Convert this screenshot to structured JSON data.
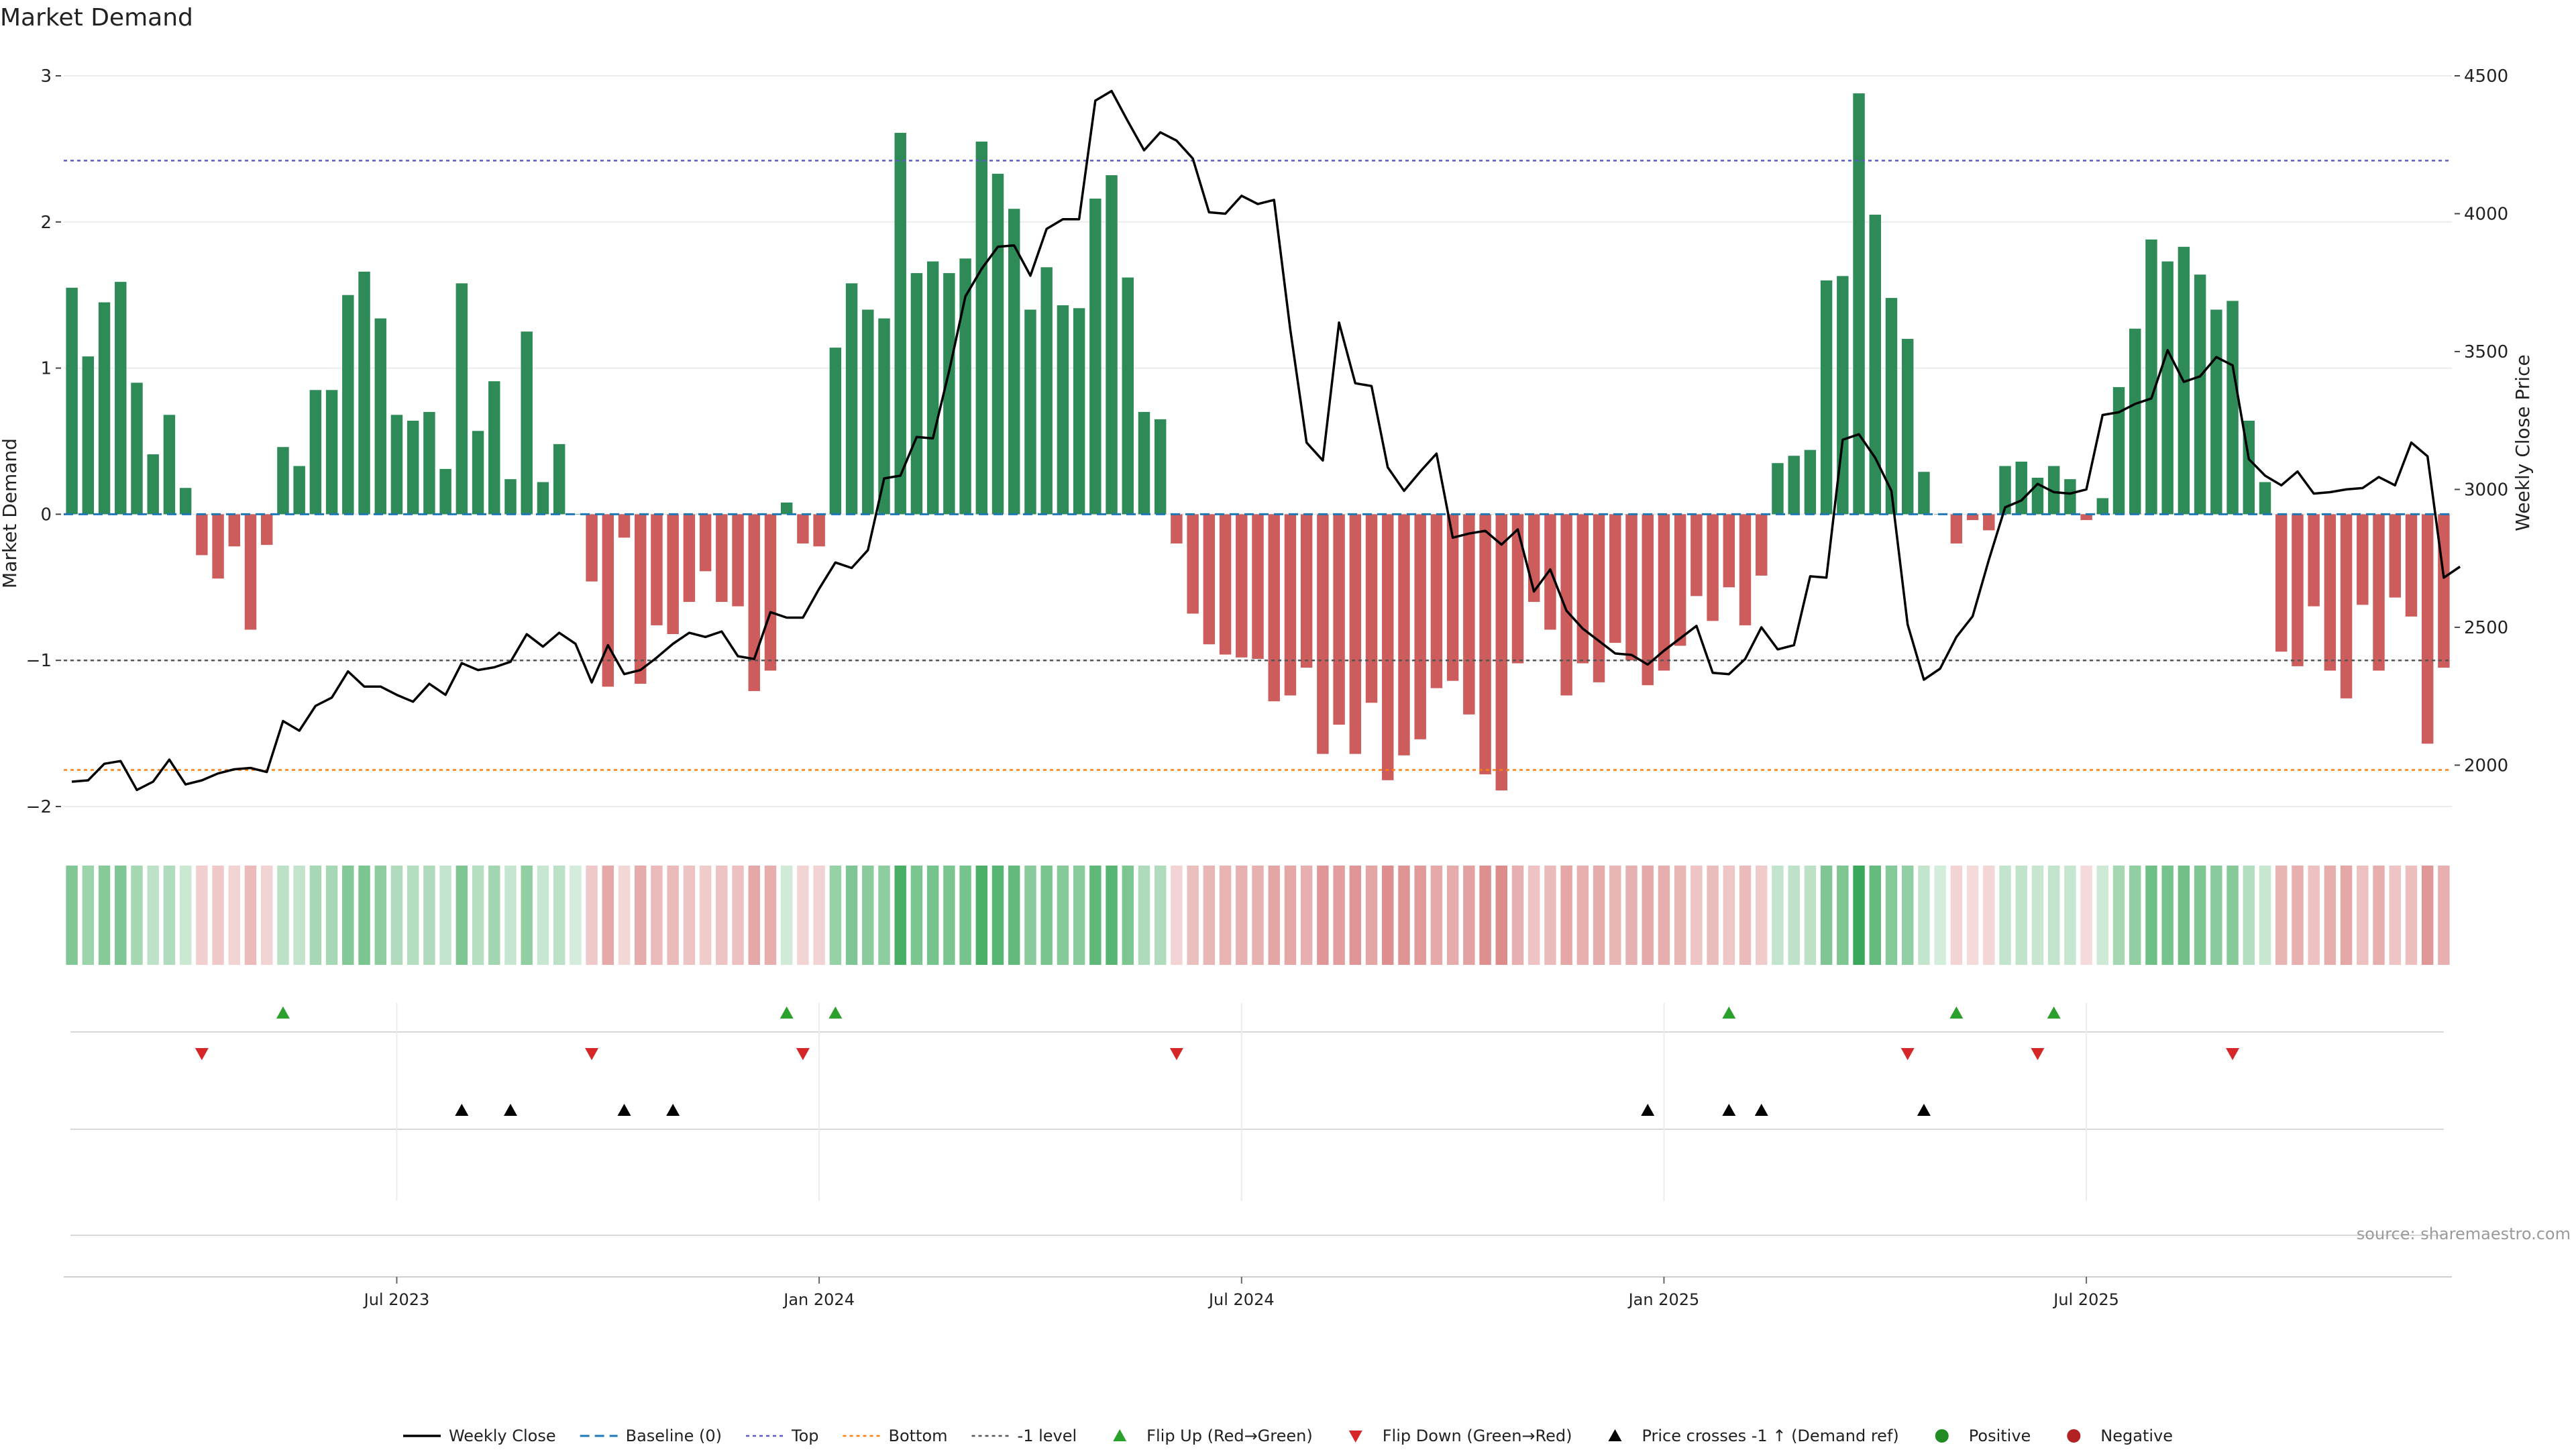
{
  "chart_data": {
    "type": "bar",
    "title": "Market Demand",
    "ylabel": "Market Demand",
    "y2label": "Weekly Close Price",
    "ylim": [
      -2.0,
      3.0
    ],
    "y2lim": [
      1850,
      4500
    ],
    "yticks": [
      -2,
      -1,
      0,
      1,
      2,
      3
    ],
    "yticklabels": [
      "−2",
      "−1",
      "0",
      "1",
      "2",
      "3"
    ],
    "y2ticks": [
      2000,
      2500,
      3000,
      3500,
      4000,
      4500
    ],
    "y2ticklabels": [
      "2000",
      "2500",
      "3000",
      "3500",
      "4000",
      "4500"
    ],
    "xticks": [
      20,
      46,
      72,
      98,
      124
    ],
    "xticklabels": [
      "Jul 2023",
      "Jan 2024",
      "Jul 2024",
      "Jan 2025",
      "Jul 2025"
    ],
    "reference_lines": {
      "top": 2.42,
      "bottom": -1.75,
      "minus_one": -1.0,
      "baseline": 0
    },
    "source_text": "source: sharemaestro.com",
    "colors": {
      "positive": "#2e8b57",
      "negative": "#cd5c5c",
      "price": "#000000",
      "baseline": "#1f77b4",
      "top": "#5b5bc8",
      "bottom": "#ff7f0e",
      "minus_one": "#555555",
      "flip_up": "#2ca02c",
      "flip_down": "#d62728",
      "cross": "#000000",
      "legend_positive": "#228b22",
      "legend_negative": "#b22222"
    },
    "series": [
      {
        "name": "Market Demand",
        "values": [
          1.55,
          1.08,
          1.45,
          1.59,
          0.9,
          0.41,
          0.68,
          0.18,
          -0.28,
          -0.44,
          -0.22,
          -0.79,
          -0.21,
          0.46,
          0.33,
          0.85,
          0.85,
          1.5,
          1.66,
          1.34,
          0.68,
          0.64,
          0.7,
          0.31,
          1.58,
          0.57,
          0.91,
          0.24,
          1.25,
          0.22,
          0.48,
          0.0,
          -0.46,
          -1.18,
          -0.16,
          -1.16,
          -0.76,
          -0.82,
          -0.6,
          -0.39,
          -0.6,
          -0.63,
          -1.21,
          -1.07,
          0.08,
          -0.2,
          -0.22,
          1.14,
          1.58,
          1.4,
          1.34,
          2.61,
          1.65,
          1.73,
          1.65,
          1.75,
          2.55,
          2.33,
          2.09,
          1.4,
          1.69,
          1.43,
          1.41,
          2.16,
          2.32,
          1.62,
          0.7,
          0.65,
          -0.2,
          -0.68,
          -0.89,
          -0.96,
          -0.98,
          -0.99,
          -1.28,
          -1.24,
          -1.05,
          -1.64,
          -1.44,
          -1.64,
          -1.29,
          -1.82,
          -1.65,
          -1.54,
          -1.19,
          -1.14,
          -1.37,
          -1.78,
          -1.89,
          -1.02,
          -0.6,
          -0.79,
          -1.24,
          -1.02,
          -1.15,
          -0.88,
          -1.0,
          -1.17,
          -1.07,
          -0.9,
          -0.56,
          -0.73,
          -0.5,
          -0.76,
          -0.42,
          0.35,
          0.4,
          0.44,
          1.6,
          1.63,
          2.88,
          2.05,
          1.48,
          1.2,
          0.29,
          0.0,
          -0.2,
          -0.04,
          -0.11,
          0.33,
          0.36,
          0.25,
          0.33,
          0.24,
          -0.04,
          0.11,
          0.87,
          1.27,
          1.88,
          1.73,
          1.83,
          1.64,
          1.4,
          1.46,
          0.64,
          0.22,
          -0.94,
          -1.04,
          -0.63,
          -1.07,
          -1.26,
          -0.62,
          -1.07,
          -0.57,
          -0.7,
          -1.57,
          -1.05
        ]
      },
      {
        "name": "Weekly Close",
        "values": [
          1940,
          1945,
          2005,
          2015,
          1910,
          1940,
          2020,
          1930,
          1945,
          1970,
          1985,
          1990,
          1975,
          2160,
          2125,
          2215,
          2245,
          2340,
          2285,
          2285,
          2255,
          2230,
          2295,
          2255,
          2370,
          2345,
          2355,
          2375,
          2475,
          2430,
          2480,
          2440,
          2300,
          2435,
          2330,
          2345,
          2390,
          2440,
          2480,
          2465,
          2485,
          2395,
          2385,
          2555,
          2535,
          2535,
          2640,
          2735,
          2715,
          2780,
          3040,
          3050,
          3190,
          3185,
          3430,
          3700,
          3800,
          3880,
          3885,
          3775,
          3945,
          3980,
          3980,
          4410,
          4445,
          4335,
          4230,
          4295,
          4265,
          4200,
          4005,
          4000,
          4065,
          4035,
          4050,
          3580,
          3170,
          3105,
          3605,
          3385,
          3375,
          3080,
          2995,
          3065,
          3130,
          2825,
          2840,
          2850,
          2800,
          2855,
          2630,
          2710,
          2560,
          2495,
          2450,
          2405,
          2400,
          2365,
          2415,
          2460,
          2505,
          2335,
          2330,
          2385,
          2500,
          2420,
          2435,
          2685,
          2680,
          3180,
          3200,
          3115,
          2995,
          2510,
          2310,
          2350,
          2465,
          2540,
          2745,
          2935,
          2960,
          3020,
          2990,
          2985,
          3000,
          3270,
          3280,
          3310,
          3330,
          3505,
          3390,
          3410,
          3480,
          3450,
          3110,
          3050,
          3015,
          3065,
          2985,
          2990,
          3000,
          3005,
          3045,
          3015,
          3170,
          3120,
          2680,
          2720
        ]
      }
    ],
    "events": {
      "flip_up": [
        13,
        44,
        47,
        102,
        116,
        122
      ],
      "flip_down": [
        8,
        32,
        45,
        68,
        113,
        121,
        133
      ],
      "price_cross": [
        24,
        27,
        34,
        37,
        97,
        102,
        104,
        114
      ]
    },
    "legend": [
      {
        "label": "Weekly Close",
        "marker": "line-solid"
      },
      {
        "label": "Baseline (0)",
        "marker": "line-dashed-blue"
      },
      {
        "label": "Top",
        "marker": "line-dotted-purple"
      },
      {
        "label": "Bottom",
        "marker": "line-dotted-orange"
      },
      {
        "label": "-1 level",
        "marker": "line-dotted-gray"
      },
      {
        "label": "Flip Up (Red→Green)",
        "marker": "triangle-up-green"
      },
      {
        "label": "Flip Down (Green→Red)",
        "marker": "triangle-down-red"
      },
      {
        "label": "Price crosses -1 ↑ (Demand ref)",
        "marker": "triangle-up-black"
      },
      {
        "label": "Positive",
        "marker": "dot-green"
      },
      {
        "label": "Negative",
        "marker": "dot-red"
      }
    ]
  }
}
